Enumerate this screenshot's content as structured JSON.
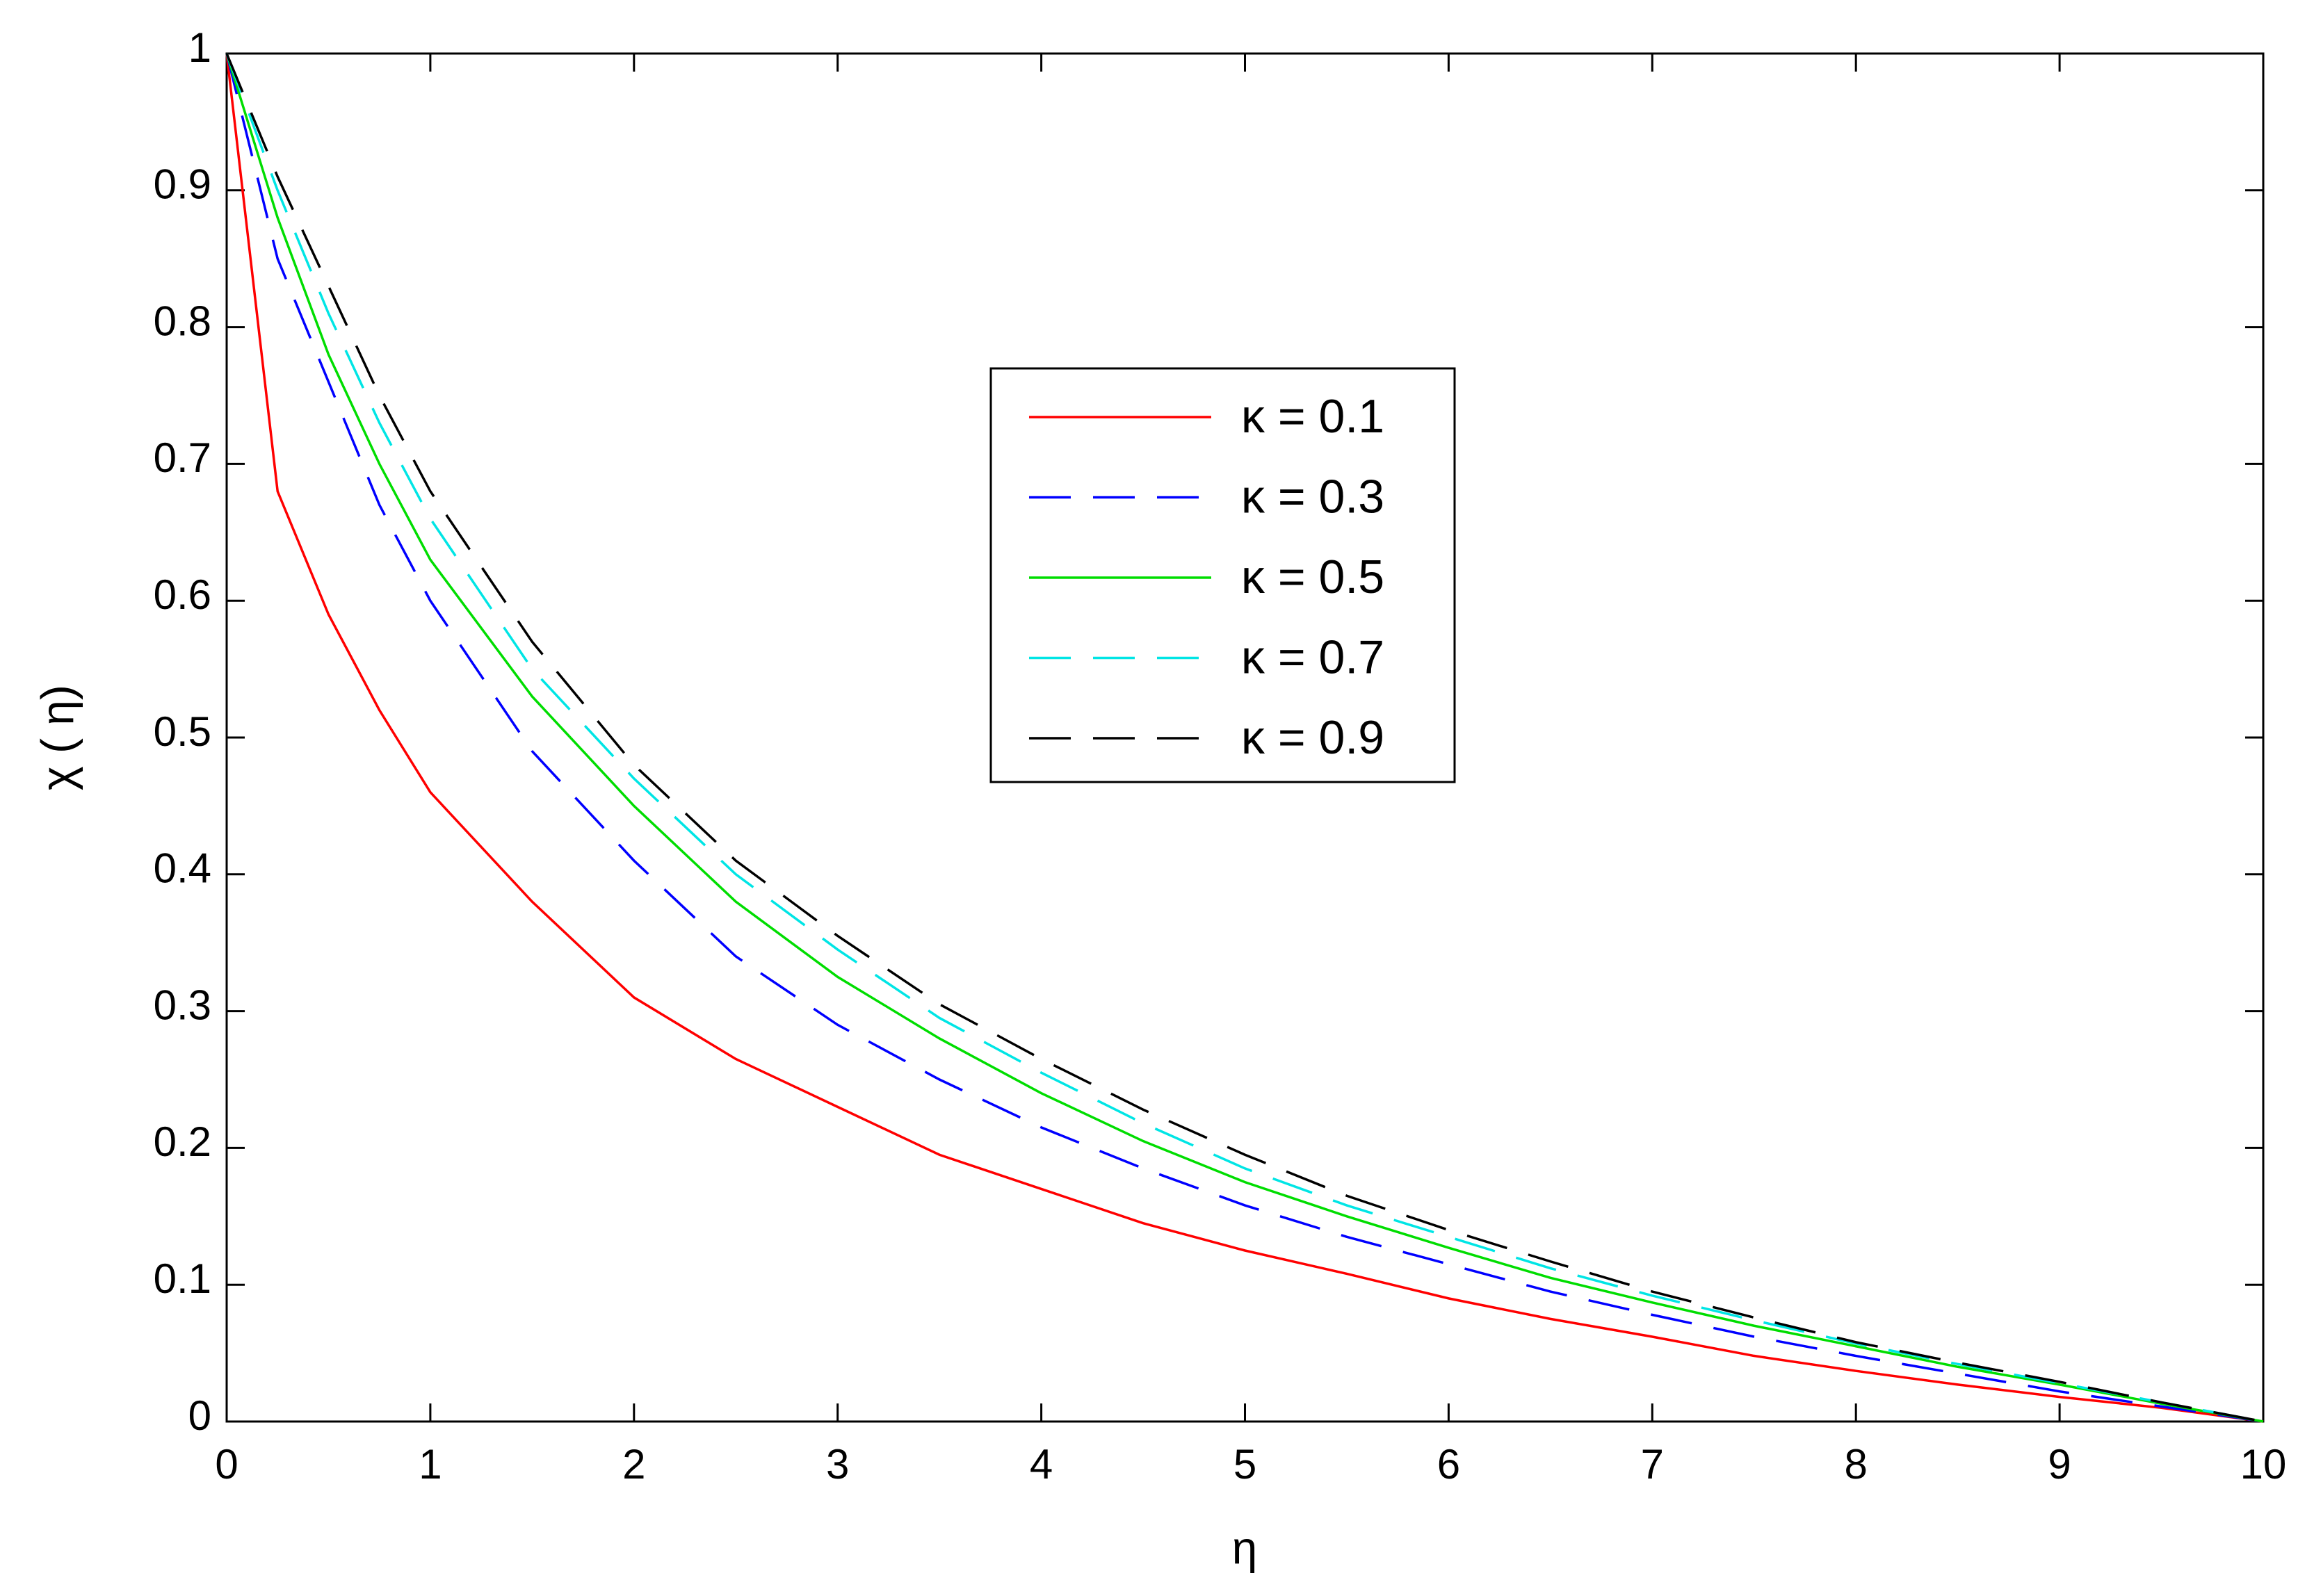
{
  "chart_data": {
    "type": "line",
    "xlabel": "η",
    "ylabel": "χ ( η)",
    "x": [
      0,
      0.25,
      0.5,
      0.75,
      1,
      1.5,
      2,
      2.5,
      3,
      3.5,
      4,
      4.5,
      5,
      5.5,
      6,
      6.5,
      7,
      7.5,
      8,
      8.5,
      9,
      9.5,
      10
    ],
    "series": [
      {
        "name": "κ = 0.1",
        "color": "#ff0000",
        "style": "solid",
        "values": [
          1,
          0.68,
          0.59,
          0.52,
          0.46,
          0.38,
          0.31,
          0.265,
          0.23,
          0.195,
          0.17,
          0.145,
          0.125,
          0.108,
          0.09,
          0.075,
          0.062,
          0.048,
          0.037,
          0.027,
          0.018,
          0.01,
          0
        ]
      },
      {
        "name": "κ = 0.3",
        "color": "#0000ff",
        "style": "dashed",
        "values": [
          1,
          0.85,
          0.76,
          0.67,
          0.6,
          0.49,
          0.41,
          0.34,
          0.29,
          0.25,
          0.215,
          0.185,
          0.158,
          0.135,
          0.115,
          0.095,
          0.078,
          0.062,
          0.048,
          0.035,
          0.022,
          0.011,
          0
        ]
      },
      {
        "name": "κ = 0.5",
        "color": "#00dd00",
        "style": "solid",
        "values": [
          1,
          0.88,
          0.78,
          0.7,
          0.63,
          0.53,
          0.45,
          0.38,
          0.325,
          0.28,
          0.24,
          0.205,
          0.175,
          0.15,
          0.127,
          0.105,
          0.087,
          0.07,
          0.055,
          0.04,
          0.027,
          0.013,
          0
        ]
      },
      {
        "name": "κ = 0.7",
        "color": "#00e5e5",
        "style": "dashed",
        "values": [
          1,
          0.9,
          0.81,
          0.73,
          0.66,
          0.55,
          0.47,
          0.4,
          0.345,
          0.295,
          0.255,
          0.218,
          0.185,
          0.158,
          0.135,
          0.112,
          0.092,
          0.074,
          0.057,
          0.042,
          0.028,
          0.014,
          0
        ]
      },
      {
        "name": "κ = 0.9",
        "color": "#000000",
        "style": "dashed",
        "values": [
          1,
          0.91,
          0.83,
          0.75,
          0.68,
          0.57,
          0.48,
          0.41,
          0.355,
          0.305,
          0.265,
          0.228,
          0.195,
          0.165,
          0.14,
          0.117,
          0.095,
          0.076,
          0.058,
          0.043,
          0.029,
          0.014,
          0
        ]
      }
    ],
    "xlim": [
      0,
      10
    ],
    "xticks": [
      0,
      1,
      2,
      3,
      4,
      5,
      6,
      7,
      8,
      9,
      10
    ],
    "ylim": [
      0,
      1
    ],
    "yticks": [
      0,
      0.1,
      0.2,
      0.3,
      0.4,
      0.5,
      0.6,
      0.7,
      0.8,
      0.9,
      1
    ],
    "grid": false,
    "legend": "center"
  }
}
